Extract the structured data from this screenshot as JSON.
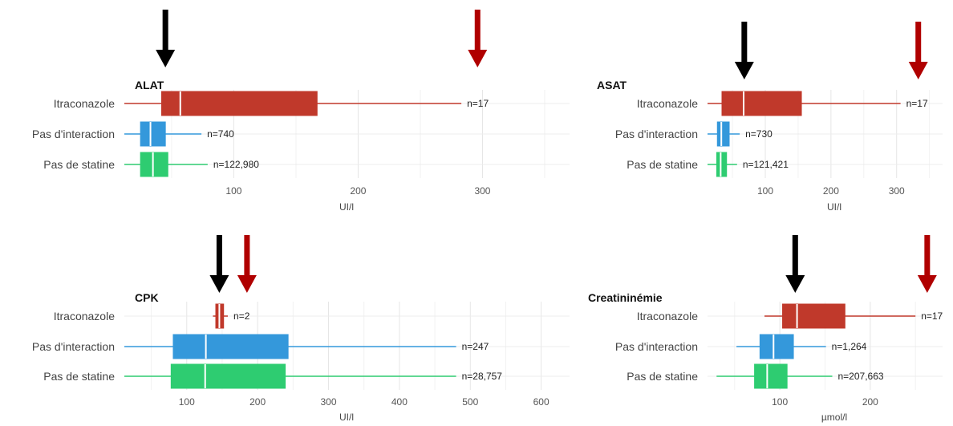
{
  "chart_data": [
    {
      "type": "boxplot",
      "title": "ALAT",
      "xlabel": "UI/l",
      "xlim": [
        12,
        370
      ],
      "xticks": [
        100,
        200,
        300
      ],
      "grid": true,
      "categories": [
        "Itraconazole",
        "Pas d'interaction",
        "Pas de statine"
      ],
      "series": [
        {
          "category": "Itraconazole",
          "whisker_low": 5,
          "q1": 42,
          "median": 57,
          "q3": 167,
          "whisker_high": 283,
          "n_label": "n=17",
          "color": "#c0392b"
        },
        {
          "category": "Pas d'interaction",
          "whisker_low": 12,
          "q1": 25,
          "median": 33,
          "q3": 45,
          "whisker_high": 74,
          "n_label": "n=740",
          "color": "#3498db"
        },
        {
          "category": "Pas de statine",
          "whisker_low": 12,
          "q1": 25,
          "median": 35,
          "q3": 47,
          "whisker_high": 79,
          "n_label": "n=122,980",
          "color": "#2ecc71"
        }
      ],
      "arrows": [
        {
          "value": 45,
          "color": "#000000"
        },
        {
          "value": 296,
          "color": "#b00000"
        }
      ]
    },
    {
      "type": "boxplot",
      "title": "ASAT",
      "xlabel": "UI/l",
      "xlim": [
        12,
        370
      ],
      "xticks": [
        100,
        200,
        300
      ],
      "grid": true,
      "categories": [
        "Itraconazole",
        "Pas d'interaction",
        "Pas de statine"
      ],
      "series": [
        {
          "category": "Itraconazole",
          "whisker_low": 5,
          "q1": 34,
          "median": 67,
          "q3": 155,
          "whisker_high": 306,
          "n_label": "n=17",
          "color": "#c0392b"
        },
        {
          "category": "Pas d'interaction",
          "whisker_low": 12,
          "q1": 27,
          "median": 33,
          "q3": 45,
          "whisker_high": 61,
          "n_label": "n=730",
          "color": "#3498db"
        },
        {
          "category": "Pas de statine",
          "whisker_low": 12,
          "q1": 26,
          "median": 32,
          "q3": 41,
          "whisker_high": 57,
          "n_label": "n=121,421",
          "color": "#2ecc71"
        }
      ],
      "arrows": [
        {
          "value": 68,
          "color": "#000000"
        },
        {
          "value": 333,
          "color": "#b00000"
        }
      ]
    },
    {
      "type": "boxplot",
      "title": "CPK",
      "xlabel": "UI/l",
      "xlim": [
        12,
        640
      ],
      "xticks": [
        100,
        200,
        300,
        400,
        500,
        600
      ],
      "grid": true,
      "categories": [
        "Itraconazole",
        "Pas d'interaction",
        "Pas de statine"
      ],
      "series": [
        {
          "category": "Itraconazole",
          "whisker_low": 137,
          "q1": 141,
          "median": 146,
          "q3": 152,
          "whisker_high": 158,
          "n_label": "n=2",
          "color": "#c0392b"
        },
        {
          "category": "Pas d'interaction",
          "whisker_low": 12,
          "q1": 81,
          "median": 127,
          "q3": 243,
          "whisker_high": 480,
          "n_label": "n=247",
          "color": "#3498db"
        },
        {
          "category": "Pas de statine",
          "whisker_low": 12,
          "q1": 78,
          "median": 126,
          "q3": 239,
          "whisker_high": 480,
          "n_label": "n=28,757",
          "color": "#2ecc71"
        }
      ],
      "arrows": [
        {
          "value": 146,
          "color": "#000000"
        },
        {
          "value": 185,
          "color": "#b00000"
        }
      ]
    },
    {
      "type": "boxplot",
      "title": "Creatininémie",
      "xlabel": "µmol/l",
      "xlim": [
        20,
        280
      ],
      "xticks": [
        100,
        200
      ],
      "grid": true,
      "categories": [
        "Itraconazole",
        "Pas d'interaction",
        "Pas de statine"
      ],
      "series": [
        {
          "category": "Itraconazole",
          "whisker_low": 83,
          "q1": 103,
          "median": 119,
          "q3": 172,
          "whisker_high": 250,
          "n_label": "n=17",
          "color": "#c0392b"
        },
        {
          "category": "Pas d'interaction",
          "whisker_low": 52,
          "q1": 78,
          "median": 93,
          "q3": 115,
          "whisker_high": 151,
          "n_label": "n=1,264",
          "color": "#3498db"
        },
        {
          "category": "Pas de statine",
          "whisker_low": 30,
          "q1": 72,
          "median": 86,
          "q3": 108,
          "whisker_high": 158,
          "n_label": "n=207,663",
          "color": "#2ecc71"
        }
      ],
      "arrows": [
        {
          "value": 117,
          "color": "#000000"
        },
        {
          "value": 263,
          "color": "#b00000"
        }
      ]
    }
  ]
}
